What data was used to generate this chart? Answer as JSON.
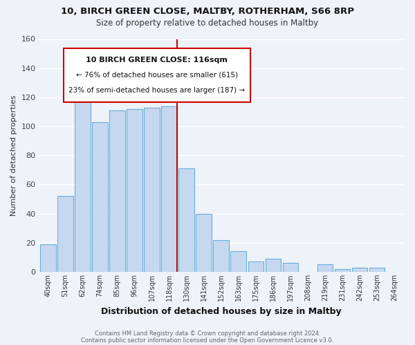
{
  "title1": "10, BIRCH GREEN CLOSE, MALTBY, ROTHERHAM, S66 8RP",
  "title2": "Size of property relative to detached houses in Maltby",
  "xlabel": "Distribution of detached houses by size in Maltby",
  "ylabel": "Number of detached properties",
  "bar_labels": [
    "40sqm",
    "51sqm",
    "62sqm",
    "74sqm",
    "85sqm",
    "96sqm",
    "107sqm",
    "118sqm",
    "130sqm",
    "141sqm",
    "152sqm",
    "163sqm",
    "175sqm",
    "186sqm",
    "197sqm",
    "208sqm",
    "219sqm",
    "231sqm",
    "242sqm",
    "253sqm",
    "264sqm"
  ],
  "bar_values": [
    19,
    52,
    121,
    103,
    111,
    112,
    113,
    114,
    71,
    40,
    22,
    14,
    7,
    9,
    6,
    0,
    5,
    2,
    3,
    3,
    0
  ],
  "bar_color": "#c5d8f0",
  "bar_edge_color": "#6aaed6",
  "highlight_bar_index": 7,
  "vline_color": "#cc0000",
  "annotation_title": "10 BIRCH GREEN CLOSE: 116sqm",
  "annotation_line1": "← 76% of detached houses are smaller (615)",
  "annotation_line2": "23% of semi-detached houses are larger (187) →",
  "annotation_box_color": "#ffffff",
  "annotation_box_edge": "#cc0000",
  "ylim": [
    0,
    160
  ],
  "yticks": [
    0,
    20,
    40,
    60,
    80,
    100,
    120,
    140,
    160
  ],
  "footer1": "Contains HM Land Registry data © Crown copyright and database right 2024.",
  "footer2": "Contains public sector information licensed under the Open Government Licence v3.0.",
  "bg_color": "#eef2f9",
  "grid_color": "#ffffff"
}
